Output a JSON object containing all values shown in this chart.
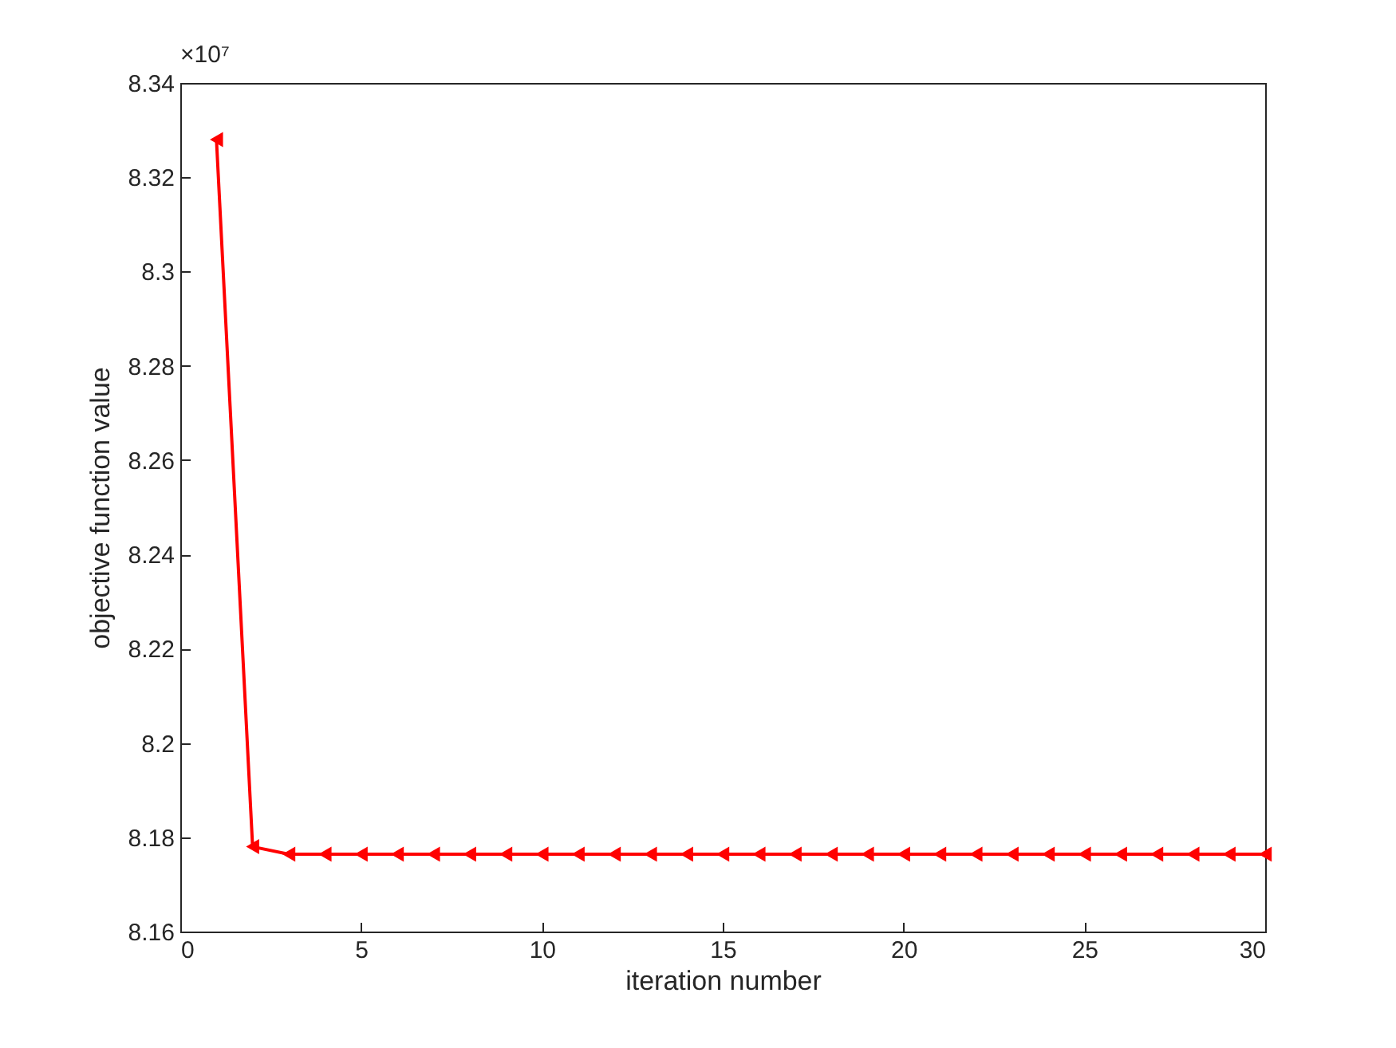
{
  "chart_data": {
    "type": "line",
    "xlabel": "iteration number",
    "ylabel": "objective function value",
    "annotations": [
      "×10⁷"
    ],
    "x": [
      1,
      2,
      3,
      4,
      5,
      6,
      7,
      8,
      9,
      10,
      11,
      12,
      13,
      14,
      15,
      16,
      17,
      18,
      19,
      20,
      21,
      22,
      23,
      24,
      25,
      26,
      27,
      28,
      29,
      30
    ],
    "series": [
      {
        "color": "#ff0000",
        "values": [
          8.328,
          8.178,
          8.1764,
          8.1764,
          8.1764,
          8.1764,
          8.1764,
          8.1764,
          8.1764,
          8.1764,
          8.1764,
          8.1764,
          8.1764,
          8.1764,
          8.1764,
          8.1764,
          8.1764,
          8.1764,
          8.1764,
          8.1764,
          8.1764,
          8.1764,
          8.1764,
          8.1764,
          8.1764,
          8.1764,
          8.1764,
          8.1764,
          8.1764,
          8.1764
        ]
      }
    ],
    "xlim": [
      0,
      30
    ],
    "xticks": [
      0,
      5,
      10,
      15,
      20,
      25,
      30
    ],
    "ylim": [
      8.16,
      8.34
    ],
    "yticks": [
      8.16,
      8.18,
      8.2,
      8.22,
      8.24,
      8.26,
      8.28,
      8.3,
      8.32,
      8.34
    ],
    "grid": false,
    "marker": "triangle",
    "line_style": "solid"
  }
}
